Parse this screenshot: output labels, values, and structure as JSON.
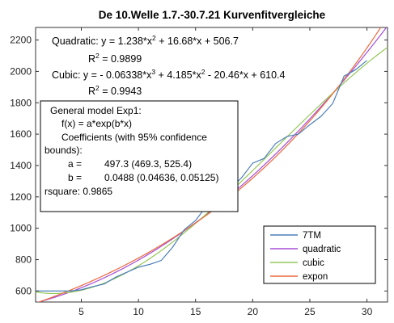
{
  "chart_data": {
    "type": "line",
    "title": "De 10.Welle 1.7.-30.7.21 Kurvenfitvergleiche",
    "xlim": [
      1,
      31.8
    ],
    "ylim": [
      530,
      2280
    ],
    "xticks": [
      5,
      10,
      15,
      20,
      25,
      30
    ],
    "yticks": [
      600,
      800,
      1000,
      1200,
      1400,
      1600,
      1800,
      2000,
      2200
    ],
    "grid": false,
    "legend_position": "bottom-right",
    "series": [
      {
        "name": "7TM",
        "color": "#4d7fb8",
        "kind": "data",
        "x": [
          1,
          2,
          3,
          4,
          5,
          6,
          7,
          8,
          9,
          10,
          11,
          12,
          13,
          14,
          15,
          16,
          17,
          18,
          19,
          20,
          21,
          22,
          23,
          24,
          25,
          26,
          27,
          28,
          29,
          30
        ],
        "y": [
          600,
          600,
          600,
          600,
          608,
          628,
          645,
          688,
          720,
          752,
          770,
          795,
          880,
          990,
          1050,
          1145,
          1215,
          1250,
          1320,
          1415,
          1445,
          1540,
          1585,
          1600,
          1660,
          1715,
          1795,
          1970,
          2010,
          2070
        ]
      },
      {
        "name": "quadratic",
        "color": "#a64ed6",
        "kind": "quadratic",
        "coef": [
          1.238,
          16.68,
          506.7
        ]
      },
      {
        "name": "cubic",
        "color": "#94c85a",
        "kind": "cubic",
        "coef": [
          -0.06338,
          4.185,
          -20.46,
          610.4
        ]
      },
      {
        "name": "expon",
        "color": "#ea6a3d",
        "kind": "exp",
        "coef": [
          497.3,
          0.0488
        ]
      }
    ],
    "annotations": {
      "quadratic_prefix": "Quadratic:  y = 1.238*x",
      "quadratic_sup": "2",
      "quadratic_suffix": " + 16.68*x + 506.7",
      "quadratic_r2_prefix": "R",
      "quadratic_r2_sup": "2",
      "quadratic_r2_suffix": " = 0.9899",
      "cubic_prefix": "Cubic:  y = - 0.06338*x",
      "cubic_sup1": "3",
      "cubic_mid": " + 4.185*x",
      "cubic_sup2": "2",
      "cubic_suffix": " - 20.46*x + 610.4",
      "cubic_r2_prefix": "R",
      "cubic_r2_sup": "2",
      "cubic_r2_suffix": " = 0.9943"
    },
    "exp_box": {
      "line1": "General model Exp1:",
      "line2": "f(x) = a*exp(b*x)",
      "line3": "Coefficients (with 95% confidence",
      "line4": "bounds):",
      "a_label": "a =",
      "a_value": "497.3  (469.3, 525.4)",
      "b_label": "b =",
      "b_value": "0.0488  (0.04636, 0.05125)",
      "rsquare": "rsquare: 0.9865"
    }
  }
}
